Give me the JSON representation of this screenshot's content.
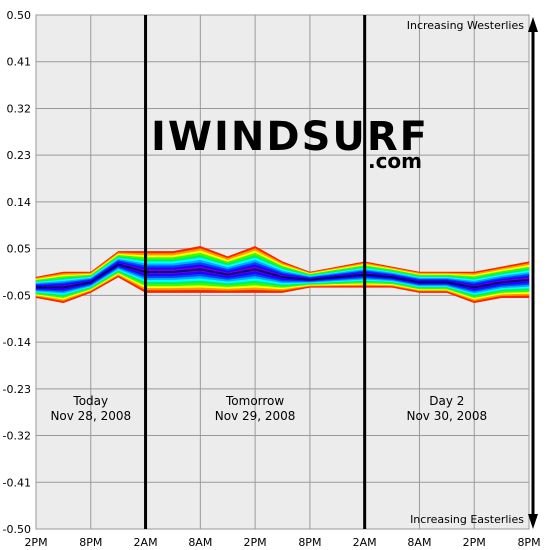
{
  "chart_data": {
    "type": "area",
    "title": "",
    "xlabel": "",
    "ylabel": "",
    "ylim": [
      -0.5,
      0.5
    ],
    "grid": true,
    "y_ticks": [
      "0.50",
      "0.41",
      "0.32",
      "0.23",
      "0.14",
      "0.05",
      "-0.05",
      "-0.14",
      "-0.23",
      "-0.32",
      "-0.41",
      "-0.50"
    ],
    "x_ticks": [
      "2PM",
      "8PM",
      "2AM",
      "8AM",
      "2PM",
      "8PM",
      "2AM",
      "8AM",
      "2PM",
      "8PM"
    ],
    "day_labels": [
      {
        "name": "Today",
        "date": "Nov 28, 2008"
      },
      {
        "name": "Tomorrow",
        "date": "Nov 29, 2008"
      },
      {
        "name": "Day 2",
        "date": "Nov 30, 2008"
      }
    ],
    "annotations": {
      "top": "Increasing Westerlies",
      "bottom": "Increasing Easterlies"
    },
    "watermark": "IWINDSURF .com",
    "upper_envelope": [
      -0.01,
      0.0,
      0.0,
      0.04,
      0.04,
      0.04,
      0.05,
      0.03,
      0.05,
      0.02,
      0.0,
      0.01,
      0.02,
      0.01,
      0.0,
      0.0,
      0.0,
      0.01,
      0.02
    ],
    "lower_envelope": [
      -0.05,
      -0.06,
      -0.04,
      -0.01,
      -0.04,
      -0.04,
      -0.04,
      -0.04,
      -0.04,
      -0.04,
      -0.03,
      -0.03,
      -0.03,
      -0.03,
      -0.04,
      -0.04,
      -0.06,
      -0.05,
      -0.05
    ],
    "colors": {
      "upper_bands": [
        "#ff2200",
        "#ff9900",
        "#ffff00",
        "#33ff00",
        "#00ee66",
        "#00ffff",
        "#00aaff",
        "#0044ff",
        "#2200ff",
        "#7700cc"
      ],
      "lower_bands": [
        "#7700cc",
        "#2200ff",
        "#0044ff",
        "#00aaff",
        "#00ffff",
        "#00ee66",
        "#33ff00",
        "#ffff00",
        "#ff9900",
        "#ff2200"
      ],
      "center_line": "#000080"
    }
  }
}
